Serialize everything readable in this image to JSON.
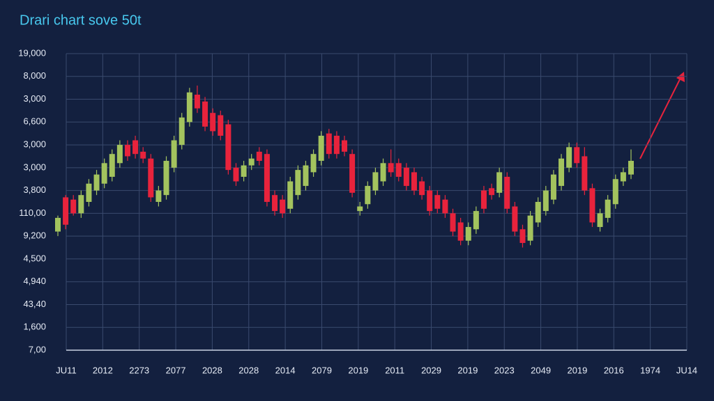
{
  "chart_data": {
    "type": "candlestick",
    "title": "Drari chart sove 50t",
    "categories": [
      "JU11",
      "2012",
      "2273",
      "2077",
      "2028",
      "2028",
      "2014",
      "2079",
      "2019",
      "2011",
      "2029",
      "2019",
      "2023",
      "2049",
      "2019",
      "2016",
      "1974",
      "JU14"
    ],
    "ylim": [
      0,
      13
    ],
    "yticks": [
      0,
      1,
      2,
      3,
      4,
      5,
      6,
      7,
      8,
      9,
      10,
      11,
      12,
      13
    ],
    "ytick_labels": [
      "7,00",
      "1,600",
      "43,40",
      "4,940",
      "4,500",
      "9,200",
      "110,00",
      "3,800",
      "3,000",
      "3,000",
      "6,600",
      "3,000",
      "8,000",
      "19,000"
    ],
    "up_color": "#a3c35e",
    "down_color": "#e8233c",
    "grid": true,
    "candles": [
      [
        5.2,
        5.9,
        5.0,
        5.8
      ],
      [
        6.7,
        6.8,
        5.3,
        5.5
      ],
      [
        6.6,
        6.8,
        5.9,
        6.0
      ],
      [
        6.0,
        7.0,
        5.8,
        6.8
      ],
      [
        6.5,
        7.5,
        6.3,
        7.3
      ],
      [
        7.0,
        7.9,
        6.8,
        7.7
      ],
      [
        7.3,
        8.4,
        7.1,
        8.2
      ],
      [
        7.6,
        8.8,
        7.4,
        8.6
      ],
      [
        8.2,
        9.2,
        8.0,
        9.0
      ],
      [
        9.0,
        9.2,
        8.3,
        8.5
      ],
      [
        9.2,
        9.4,
        8.4,
        8.6
      ],
      [
        8.7,
        8.9,
        8.2,
        8.4
      ],
      [
        8.4,
        8.6,
        6.5,
        6.7
      ],
      [
        6.5,
        7.2,
        6.3,
        7.0
      ],
      [
        6.8,
        8.5,
        6.6,
        8.3
      ],
      [
        8.0,
        9.4,
        7.8,
        9.2
      ],
      [
        9.0,
        10.4,
        8.8,
        10.2
      ],
      [
        10.0,
        11.5,
        9.8,
        11.3
      ],
      [
        11.2,
        11.6,
        10.4,
        10.6
      ],
      [
        10.9,
        11.1,
        9.6,
        9.8
      ],
      [
        10.4,
        10.6,
        9.4,
        9.6
      ],
      [
        10.3,
        10.5,
        9.2,
        9.4
      ],
      [
        9.9,
        10.1,
        7.7,
        7.9
      ],
      [
        8.0,
        8.2,
        7.2,
        7.4
      ],
      [
        7.6,
        8.3,
        7.4,
        8.1
      ],
      [
        8.1,
        8.6,
        7.9,
        8.4
      ],
      [
        8.7,
        8.9,
        8.1,
        8.3
      ],
      [
        8.6,
        8.8,
        6.3,
        6.5
      ],
      [
        6.8,
        7.0,
        5.9,
        6.1
      ],
      [
        6.6,
        6.8,
        5.8,
        6.0
      ],
      [
        6.2,
        7.6,
        6.0,
        7.4
      ],
      [
        6.8,
        8.1,
        6.6,
        7.9
      ],
      [
        7.2,
        8.3,
        7.0,
        8.1
      ],
      [
        7.8,
        8.8,
        7.6,
        8.6
      ],
      [
        8.3,
        9.6,
        8.1,
        9.4
      ],
      [
        9.5,
        9.7,
        8.4,
        8.6
      ],
      [
        9.4,
        9.6,
        8.4,
        8.6
      ],
      [
        9.2,
        9.4,
        8.5,
        8.7
      ],
      [
        8.6,
        8.8,
        6.7,
        6.9
      ],
      [
        6.1,
        6.5,
        5.9,
        6.3
      ],
      [
        6.4,
        7.4,
        6.2,
        7.2
      ],
      [
        7.0,
        8.0,
        6.8,
        7.8
      ],
      [
        7.4,
        8.4,
        7.2,
        8.2
      ],
      [
        8.2,
        8.8,
        7.6,
        7.8
      ],
      [
        8.2,
        8.4,
        7.4,
        7.6
      ],
      [
        8.0,
        8.2,
        7.0,
        7.2
      ],
      [
        7.8,
        8.0,
        6.8,
        7.0
      ],
      [
        7.4,
        7.6,
        6.6,
        6.8
      ],
      [
        7.0,
        7.2,
        5.9,
        6.1
      ],
      [
        6.8,
        7.0,
        6.0,
        6.2
      ],
      [
        6.6,
        6.8,
        5.8,
        6.0
      ],
      [
        6.0,
        6.2,
        5.0,
        5.2
      ],
      [
        5.6,
        5.8,
        4.6,
        4.8
      ],
      [
        4.8,
        5.6,
        4.6,
        5.4
      ],
      [
        5.3,
        6.3,
        5.1,
        6.1
      ],
      [
        7.0,
        7.2,
        6.0,
        6.2
      ],
      [
        7.1,
        7.3,
        6.6,
        6.8
      ],
      [
        6.9,
        8.0,
        6.7,
        7.8
      ],
      [
        7.6,
        7.8,
        6.0,
        6.2
      ],
      [
        6.3,
        6.5,
        5.0,
        5.2
      ],
      [
        5.3,
        5.5,
        4.5,
        4.7
      ],
      [
        4.8,
        6.1,
        4.6,
        5.9
      ],
      [
        5.6,
        6.7,
        5.4,
        6.5
      ],
      [
        6.1,
        7.2,
        5.9,
        7.0
      ],
      [
        6.6,
        7.9,
        6.4,
        7.7
      ],
      [
        7.2,
        8.6,
        7.0,
        8.4
      ],
      [
        8.0,
        9.1,
        7.8,
        8.9
      ],
      [
        8.9,
        9.1,
        8.0,
        8.2
      ],
      [
        8.5,
        8.9,
        6.8,
        7.0
      ],
      [
        7.1,
        7.3,
        5.4,
        5.6
      ],
      [
        5.4,
        6.2,
        5.2,
        6.0
      ],
      [
        5.8,
        6.8,
        5.6,
        6.6
      ],
      [
        6.4,
        7.7,
        6.2,
        7.5
      ],
      [
        7.4,
        8.0,
        7.2,
        7.8
      ],
      [
        7.7,
        8.8,
        7.5,
        8.3
      ]
    ]
  }
}
